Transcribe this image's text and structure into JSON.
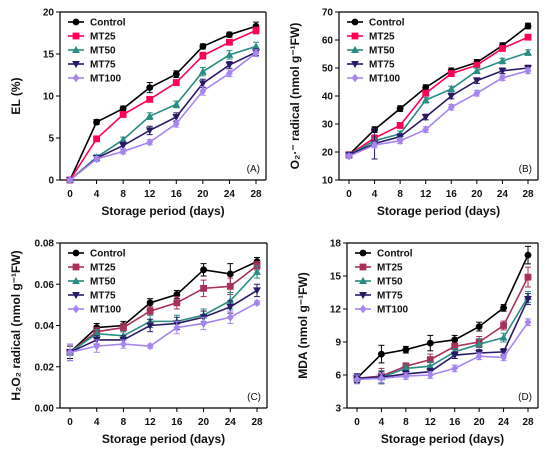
{
  "colors": {
    "Control": "#000000",
    "MT25": "#ff0055",
    "MT50": "#2a8c82",
    "MT75": "#2a1a66",
    "MT100": "#a785f0",
    "MT25_C": "#a8305a"
  },
  "chart_data": [
    {
      "type": "line",
      "panel": "(A)",
      "xlabel": "Storage period (days)",
      "ylabel": "EL (%)",
      "x": [
        0,
        4,
        8,
        12,
        16,
        20,
        24,
        28
      ],
      "xlim": [
        0,
        28
      ],
      "ylim": [
        0,
        20
      ],
      "yticks": [
        0,
        5,
        10,
        15,
        20
      ],
      "legend": "top-left",
      "series": [
        {
          "name": "Control",
          "marker": "circle",
          "values": [
            0,
            6.9,
            8.5,
            11.0,
            12.6,
            15.9,
            17.3,
            18.3
          ],
          "err": [
            0.2,
            0.3,
            0.3,
            0.6,
            0.4,
            0.3,
            0.3,
            0.5
          ]
        },
        {
          "name": "MT25",
          "marker": "square",
          "values": [
            0,
            4.9,
            7.8,
            9.6,
            11.6,
            14.8,
            16.4,
            17.8
          ],
          "err": [
            0.2,
            0.3,
            0.3,
            0.3,
            0.3,
            0.4,
            0.3,
            0.4
          ]
        },
        {
          "name": "MT50",
          "marker": "triangle",
          "values": [
            0,
            2.7,
            4.8,
            7.6,
            9.0,
            12.9,
            14.9,
            15.9
          ],
          "err": [
            0.2,
            0.3,
            0.3,
            0.4,
            0.4,
            0.5,
            0.5,
            0.5
          ]
        },
        {
          "name": "MT75",
          "marker": "triangle-down",
          "values": [
            0,
            2.6,
            4.1,
            5.9,
            7.5,
            11.5,
            13.7,
            15.2
          ],
          "err": [
            0.2,
            0.3,
            0.4,
            0.5,
            0.5,
            0.5,
            0.4,
            0.4
          ]
        },
        {
          "name": "MT100",
          "marker": "diamond",
          "values": [
            0,
            2.5,
            3.4,
            4.5,
            6.7,
            10.6,
            12.7,
            15.1
          ],
          "err": [
            0.2,
            0.3,
            0.3,
            0.3,
            0.4,
            0.5,
            0.4,
            0.4
          ]
        }
      ]
    },
    {
      "type": "line",
      "panel": "(B)",
      "xlabel": "Storage period (days)",
      "ylabel": "O₂·⁻ radical (nmol g⁻¹FW)",
      "x": [
        0,
        4,
        8,
        12,
        16,
        20,
        24,
        28
      ],
      "xlim": [
        0,
        28
      ],
      "ylim": [
        10,
        70
      ],
      "yticks": [
        10,
        20,
        30,
        40,
        50,
        60,
        70
      ],
      "legend": "top-left",
      "series": [
        {
          "name": "Control",
          "marker": "circle",
          "values": [
            19,
            28,
            35.5,
            43,
            49,
            52,
            58,
            65
          ],
          "err": [
            0.8,
            1,
            1,
            1,
            1,
            1,
            1,
            1
          ]
        },
        {
          "name": "MT25",
          "marker": "square",
          "values": [
            19,
            25,
            29.5,
            41,
            48,
            51,
            57,
            61
          ],
          "err": [
            0.8,
            1,
            1,
            1,
            1,
            1,
            1,
            1
          ]
        },
        {
          "name": "MT50",
          "marker": "triangle",
          "values": [
            19,
            24,
            26.5,
            38.5,
            42.5,
            49,
            52.5,
            55.5
          ],
          "err": [
            0.8,
            1,
            1,
            1,
            1,
            1,
            1,
            1
          ]
        },
        {
          "name": "MT75",
          "marker": "triangle-down",
          "values": [
            19,
            23,
            25.5,
            32.5,
            40,
            45.5,
            49,
            50
          ],
          "err": [
            0.8,
            5.5,
            1,
            1,
            1,
            1,
            1,
            1
          ]
        },
        {
          "name": "MT100",
          "marker": "diamond",
          "values": [
            18.5,
            22.5,
            24,
            28,
            36,
            41,
            46.5,
            49
          ],
          "err": [
            0.8,
            1,
            1,
            1,
            1,
            1,
            1,
            1
          ]
        }
      ]
    },
    {
      "type": "line",
      "panel": "(C)",
      "xlabel": "Storage period (days)",
      "ylabel": "H₂O₂ radical (nmol g⁻¹FW)",
      "x": [
        0,
        4,
        8,
        12,
        16,
        20,
        24,
        28
      ],
      "xlim": [
        0,
        28
      ],
      "ylim": [
        0,
        0.08
      ],
      "yticks": [
        0.0,
        0.02,
        0.04,
        0.06,
        0.08
      ],
      "legend": "top-left",
      "series": [
        {
          "name": "Control",
          "marker": "circle",
          "values": [
            0.027,
            0.039,
            0.04,
            0.051,
            0.055,
            0.067,
            0.065,
            0.071
          ],
          "err": [
            0.003,
            0.002,
            0.002,
            0.002,
            0.002,
            0.003,
            0.005,
            0.002
          ]
        },
        {
          "name": "MT25",
          "marker": "square",
          "values": [
            0.027,
            0.037,
            0.039,
            0.047,
            0.051,
            0.058,
            0.059,
            0.069
          ],
          "err": [
            0.004,
            0.002,
            0.002,
            0.002,
            0.003,
            0.004,
            0.004,
            0.002
          ]
        },
        {
          "name": "MT50",
          "marker": "triangle",
          "values": [
            0.027,
            0.036,
            0.035,
            0.042,
            0.042,
            0.045,
            0.052,
            0.066
          ],
          "err": [
            0.004,
            0.002,
            0.002,
            0.003,
            0.003,
            0.003,
            0.004,
            0.003
          ]
        },
        {
          "name": "MT75",
          "marker": "triangle-down",
          "values": [
            0.027,
            0.033,
            0.033,
            0.04,
            0.041,
            0.044,
            0.049,
            0.057
          ],
          "err": [
            0.004,
            0.002,
            0.002,
            0.003,
            0.003,
            0.003,
            0.003,
            0.003
          ]
        },
        {
          "name": "MT100",
          "marker": "diamond",
          "values": [
            0.027,
            0.03,
            0.031,
            0.03,
            0.039,
            0.041,
            0.044,
            0.051
          ],
          "err": [
            0.004,
            0.003,
            0.002,
            0.001,
            0.003,
            0.003,
            0.003,
            0.001
          ]
        }
      ]
    },
    {
      "type": "line",
      "panel": "(D)",
      "xlabel": "Storage period (days)",
      "ylabel": "MDA (nmol g⁻¹FW)",
      "x": [
        0,
        4,
        8,
        12,
        16,
        20,
        24,
        28
      ],
      "xlim": [
        0,
        28
      ],
      "ylim": [
        3,
        18
      ],
      "yticks": [
        3,
        6,
        9,
        12,
        15,
        18
      ],
      "legend": "top-left",
      "series": [
        {
          "name": "Control",
          "marker": "circle",
          "values": [
            5.7,
            7.9,
            8.3,
            8.9,
            9.2,
            10.4,
            12.1,
            16.9
          ],
          "err": [
            0.4,
            0.8,
            0.3,
            0.7,
            0.4,
            0.4,
            0.3,
            0.8
          ]
        },
        {
          "name": "MT25",
          "marker": "square",
          "values": [
            5.7,
            5.9,
            6.8,
            7.4,
            8.6,
            9.0,
            10.5,
            14.9
          ],
          "err": [
            0.4,
            0.7,
            0.3,
            0.5,
            0.3,
            0.5,
            0.4,
            0.9
          ]
        },
        {
          "name": "MT50",
          "marker": "triangle",
          "values": [
            5.7,
            5.8,
            6.6,
            6.8,
            8.1,
            8.8,
            9.4,
            13.1
          ],
          "err": [
            0.4,
            0.6,
            0.3,
            0.4,
            0.3,
            0.5,
            0.4,
            0.5
          ]
        },
        {
          "name": "MT75",
          "marker": "triangle-down",
          "values": [
            5.7,
            5.8,
            6.1,
            6.3,
            7.8,
            8.0,
            8.1,
            12.9
          ],
          "err": [
            0.4,
            0.5,
            0.3,
            0.3,
            0.3,
            0.3,
            0.3,
            0.5
          ]
        },
        {
          "name": "MT100",
          "marker": "diamond",
          "values": [
            5.6,
            5.7,
            5.9,
            6.0,
            6.6,
            7.7,
            7.6,
            10.8
          ],
          "err": [
            0.4,
            0.4,
            0.3,
            0.3,
            0.3,
            0.3,
            0.3,
            0.3
          ]
        }
      ]
    }
  ]
}
